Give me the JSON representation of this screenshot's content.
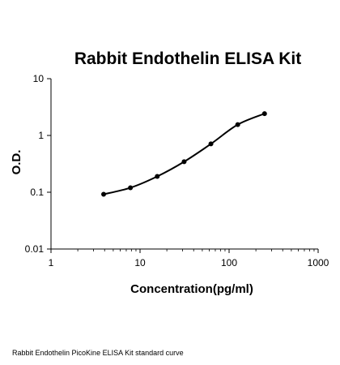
{
  "chart_data": {
    "type": "line",
    "title": "Rabbit Endothelin ELISA Kit",
    "xlabel": "Concentration(pg/ml)",
    "ylabel": "O.D.",
    "xscale": "log",
    "yscale": "log",
    "xlim": [
      1,
      1000
    ],
    "ylim": [
      0.01,
      10
    ],
    "x_ticks": [
      "1",
      "10",
      "100",
      "1000"
    ],
    "y_ticks": [
      "0.01",
      "0.1",
      "1",
      "10"
    ],
    "grid": false,
    "line_color": "#000000",
    "series": [
      {
        "x": [
          3.9,
          7.8,
          15.6,
          31.25,
          62.5,
          125,
          250
        ],
        "y": [
          0.092,
          0.12,
          0.19,
          0.345,
          0.71,
          1.55,
          2.42
        ]
      }
    ]
  },
  "caption": "Rabbit Endothelin PicoKine ELISA Kit standard curve"
}
